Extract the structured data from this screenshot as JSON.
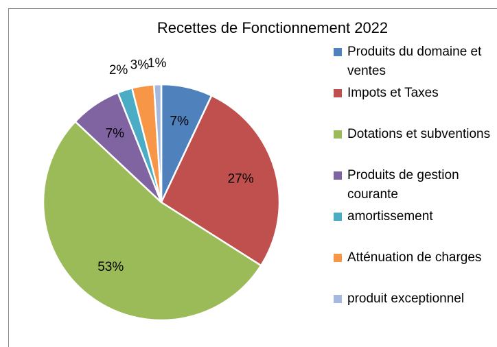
{
  "chart_data": {
    "type": "pie",
    "title": "Recettes de Fonctionnement 2022",
    "categories": [
      "Produits du domaine et ventes",
      "Impots et Taxes",
      "Dotations et subventions",
      "Produits de gestion courante",
      "amortissement",
      "Atténuation de charges",
      "produit exceptionnel"
    ],
    "values": [
      7,
      27,
      53,
      7,
      2,
      3,
      1
    ],
    "value_labels": [
      "7%",
      "27%",
      "53%",
      "7%",
      "2%",
      "3%",
      "1%"
    ],
    "colors": [
      "#4f81bd",
      "#c0504d",
      "#9bbb59",
      "#8064a2",
      "#4bacc6",
      "#f79646",
      "#a5b8dd"
    ],
    "legend": "right"
  }
}
